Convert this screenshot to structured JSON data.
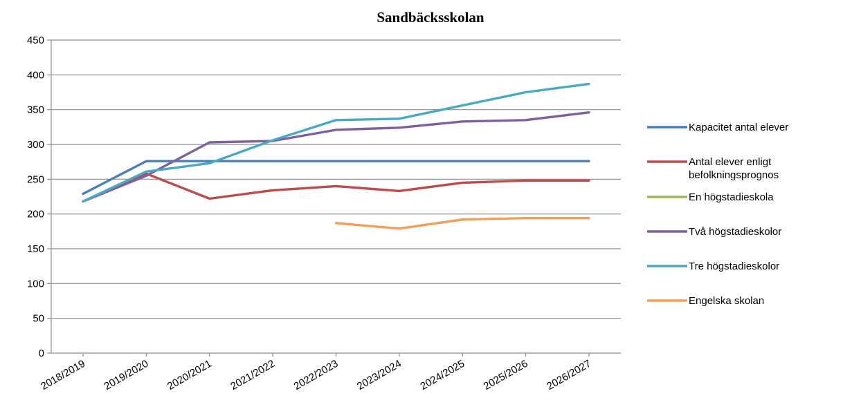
{
  "chart_data": {
    "type": "line",
    "title": "Sandbäcksskolan",
    "xlabel": "",
    "ylabel": "",
    "ylim": [
      0,
      450
    ],
    "yticks": [
      0,
      50,
      100,
      150,
      200,
      250,
      300,
      350,
      400,
      450
    ],
    "grid": "horizontal",
    "legend_position": "right",
    "categories": [
      "2018/2019",
      "2019/2020",
      "2020/2021",
      "2021/2022",
      "2022/2023",
      "2023/2024",
      "2024/2025",
      "2025/2026",
      "2026/2027"
    ],
    "series": [
      {
        "name": "Kapacitet antal elever",
        "color": "#4A7EBB",
        "values": [
          229,
          276,
          276,
          276,
          276,
          276,
          276,
          276,
          276
        ]
      },
      {
        "name": "Antal elever enligt befolkningsprognos",
        "color": "#BE4B48",
        "values": [
          218,
          258,
          222,
          234,
          240,
          233,
          245,
          248,
          248
        ]
      },
      {
        "name": "En högstadieskola",
        "color": "#98B954",
        "values": [
          null,
          null,
          null,
          null,
          null,
          null,
          null,
          null,
          null
        ]
      },
      {
        "name": "Två högstadieskolor",
        "color": "#7D60A0",
        "values": [
          218,
          255,
          303,
          305,
          321,
          324,
          333,
          335,
          346
        ]
      },
      {
        "name": "Tre högstadieskolor",
        "color": "#46AAC5",
        "values": [
          218,
          261,
          273,
          306,
          335,
          337,
          356,
          375,
          387
        ]
      },
      {
        "name": "Engelska skolan",
        "color": "#F59D56",
        "values": [
          null,
          null,
          null,
          null,
          187,
          179,
          192,
          194,
          194
        ]
      }
    ]
  }
}
